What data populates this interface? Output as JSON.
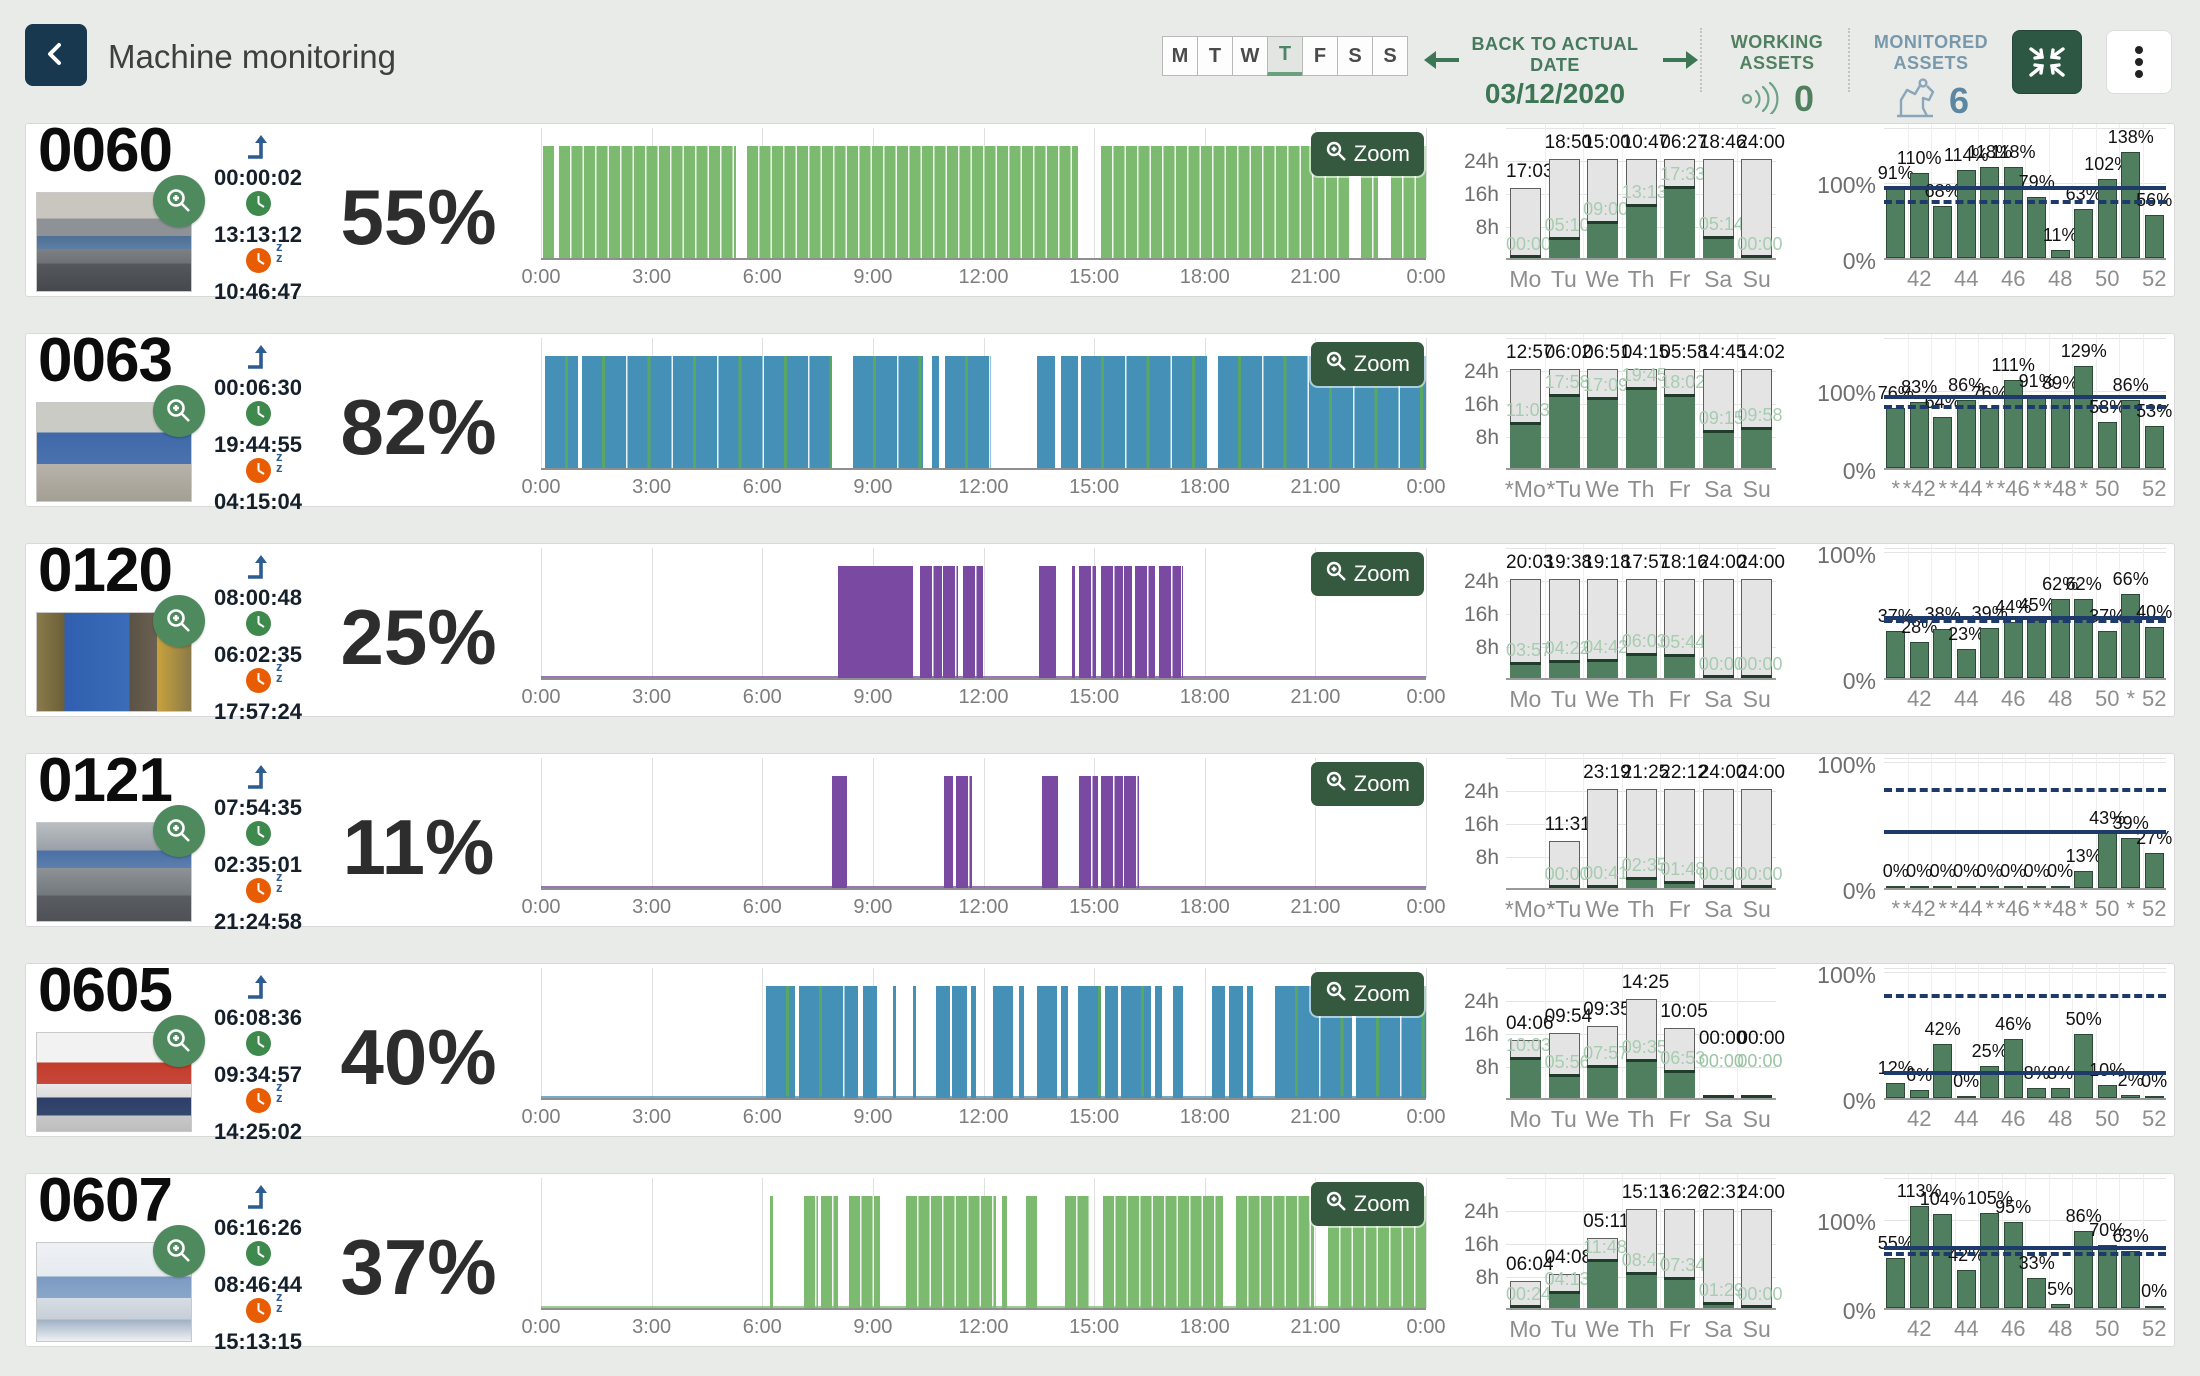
{
  "header": {
    "title": "Machine monitoring",
    "back_icon": "chevron-left-icon",
    "days": {
      "labels": [
        "M",
        "T",
        "W",
        "T",
        "F",
        "S",
        "S"
      ],
      "active_index": 3
    },
    "date_nav": {
      "label": "BACK TO ACTUAL DATE",
      "date": "03/12/2020",
      "prev_icon": "arrow-left-icon",
      "next_icon": "arrow-right-icon"
    },
    "working_assets": {
      "label": "WORKING ASSETS",
      "count": "0",
      "icon": "signal-waves-icon"
    },
    "monitored_assets": {
      "label": "MONITORED ASSETS",
      "count": "6",
      "icon": "robot-arm-icon"
    },
    "collapse_icon": "collapse-arrows-icon",
    "menu_icon": "kebab-menu-icon"
  },
  "colors": {
    "navy_button": "#17384e",
    "green_accent": "#3d7655",
    "dark_green_button": "#2d5743",
    "timeline_green": "#7cba6f",
    "timeline_blue": "#4590b6",
    "timeline_purple": "#7a4aa2",
    "bar_green": "#507f60",
    "bar_gray": "#e4e4e4",
    "target_line_navy": "#1d3a6b",
    "working_green": "#50805f",
    "monitored_blue": "#7898ab"
  },
  "zoom_button_label": "Zoom",
  "timeline_axis": [
    "0:00",
    "3:00",
    "6:00",
    "9:00",
    "12:00",
    "15:00",
    "18:00",
    "21:00",
    "0:00"
  ],
  "weekly_axis": {
    "y": [
      "24h",
      "16h",
      "8h"
    ]
  },
  "pct_axis": {
    "y100": "100%",
    "y0": "0%"
  },
  "machines": [
    {
      "id": "0060",
      "percent": "55%",
      "photo": "a",
      "times": {
        "changeover": "00:00:02",
        "running": "13:13:12",
        "idle": "10:46:47"
      },
      "timeline": {
        "color": "green",
        "baseline_colored": false,
        "segments": [
          [
            0.05,
            0.35,
            1
          ],
          [
            0.5,
            5.3,
            1
          ],
          [
            5.6,
            14.55,
            1
          ],
          [
            15.2,
            21.9,
            1
          ],
          [
            22.25,
            22.7,
            1
          ],
          [
            23.05,
            24,
            1
          ]
        ]
      },
      "week": {
        "days": [
          "Mo",
          "Tu",
          "We",
          "Th",
          "Fr",
          "Sa",
          "Su"
        ],
        "top": [
          "17:03",
          "18:50",
          "15:00",
          "10:47",
          "06:27",
          "18:46",
          "24:00"
        ],
        "green": [
          "00:00",
          "05:10",
          "09:00",
          "13:13",
          "17:33",
          "05:14",
          "00:00"
        ],
        "green_h": [
          0.1,
          5.17,
          9.0,
          13.22,
          17.55,
          5.23,
          0.1
        ],
        "total_h": [
          17.05,
          24,
          24,
          24,
          24,
          24,
          24
        ]
      },
      "weeks": {
        "ticks": [
          "",
          "42",
          "",
          "44",
          "",
          "46",
          "",
          "48",
          "",
          "50",
          "",
          "52"
        ],
        "values": [
          91,
          110,
          68,
          114,
          118,
          118,
          79,
          11,
          63,
          102,
          138,
          56
        ],
        "labels": [
          "91%",
          "110%",
          "68%",
          "114%",
          "118%",
          "118%",
          "79%",
          "11%",
          "63%",
          "102%",
          "138%",
          "56%"
        ],
        "solid": 88,
        "dashed": 70,
        "ymax": 166
      }
    },
    {
      "id": "0063",
      "percent": "82%",
      "photo": "b",
      "times": {
        "changeover": "00:06:30",
        "running": "19:44:55",
        "idle": "04:15:04"
      },
      "timeline": {
        "color": "blue",
        "baseline_colored": false,
        "segments": [
          [
            0.1,
            1.0,
            1
          ],
          [
            1.12,
            7.9,
            1
          ],
          [
            8.45,
            10.35,
            1
          ],
          [
            10.6,
            10.8,
            1
          ],
          [
            10.95,
            12.2,
            1
          ],
          [
            13.45,
            13.95,
            1
          ],
          [
            14.1,
            14.55,
            1
          ],
          [
            14.65,
            18.05,
            1
          ],
          [
            18.35,
            24,
            1
          ]
        ]
      },
      "week": {
        "days": [
          "*Mo",
          "*Tu",
          "We",
          "Th",
          "Fr",
          "Sa",
          "Su"
        ],
        "top": [
          "12:57",
          "06:02",
          "06:51",
          "04:15",
          "05:58",
          "14:45",
          "14:02"
        ],
        "green": [
          "11:03",
          "17:58",
          "17:09",
          "19:45",
          "18:02",
          "09:15",
          "09:58"
        ],
        "green_h": [
          11.05,
          17.97,
          17.15,
          19.75,
          18.03,
          9.25,
          9.97
        ],
        "total_h": [
          24,
          24,
          24,
          24,
          24,
          24,
          24
        ]
      },
      "weeks": {
        "ticks": [
          "*",
          "*42",
          "*",
          "*44",
          "*",
          "*46",
          "*",
          "*48",
          "*",
          "50",
          "",
          "52"
        ],
        "values": [
          76,
          83,
          64,
          86,
          76,
          111,
          91,
          89,
          129,
          58,
          86,
          53
        ],
        "labels": [
          "76%",
          "83%",
          "64%",
          "86%",
          "76%",
          "111%",
          "91%",
          "89%",
          "129%",
          "58%",
          "86%",
          "53%"
        ],
        "solid": 87,
        "dashed": 75,
        "ymax": 162
      }
    },
    {
      "id": "0120",
      "percent": "25%",
      "photo": "c",
      "times": {
        "changeover": "08:00:48",
        "running": "06:02:35",
        "idle": "17:57:24"
      },
      "timeline": {
        "color": "purple",
        "baseline_colored": true,
        "segments": [
          [
            8.05,
            10.1,
            0
          ],
          [
            10.28,
            11.32,
            1
          ],
          [
            11.45,
            11.98,
            1
          ],
          [
            13.5,
            13.97,
            0
          ],
          [
            14.4,
            14.47,
            0
          ],
          [
            14.6,
            15.05,
            1
          ],
          [
            15.18,
            16.02,
            1
          ],
          [
            16.1,
            16.65,
            1
          ],
          [
            16.75,
            17.42,
            1
          ]
        ]
      },
      "week": {
        "days": [
          "Mo",
          "Tu",
          "We",
          "Th",
          "Fr",
          "Sa",
          "Su"
        ],
        "top": [
          "20:03",
          "19:38",
          "19:18",
          "17:57",
          "18:16",
          "24:00",
          "24:00"
        ],
        "green": [
          "03:57",
          "04:22",
          "04:42",
          "06:03",
          "05:44",
          "00:00",
          "00:00"
        ],
        "green_h": [
          3.95,
          4.37,
          4.7,
          6.05,
          5.73,
          0.1,
          0.1
        ],
        "total_h": [
          24,
          24,
          24,
          24,
          24,
          24,
          24
        ]
      },
      "weeks": {
        "ticks": [
          "",
          "42",
          "",
          "44",
          "",
          "46",
          "",
          "48",
          "",
          "50",
          "*",
          "52"
        ],
        "values": [
          37,
          28,
          38,
          23,
          39,
          44,
          45,
          62,
          62,
          37,
          66,
          40
        ],
        "labels": [
          "37%",
          "28%",
          "38%",
          "23%",
          "39%",
          "44%",
          "45%",
          "62%",
          "62%",
          "37%",
          "66%",
          "40%"
        ],
        "solid": 45,
        "dashed": 43,
        "ymax": 100
      }
    },
    {
      "id": "0121",
      "percent": "11%",
      "photo": "d",
      "times": {
        "changeover": "07:54:35",
        "running": "02:35:01",
        "idle": "21:24:58"
      },
      "timeline": {
        "color": "purple",
        "baseline_colored": true,
        "segments": [
          [
            7.88,
            8.3,
            0
          ],
          [
            10.92,
            11.18,
            0
          ],
          [
            11.25,
            11.68,
            1
          ],
          [
            13.58,
            14.02,
            0
          ],
          [
            14.6,
            15.1,
            1
          ],
          [
            15.18,
            16.22,
            1
          ]
        ]
      },
      "week": {
        "days": [
          "*Mo",
          "*Tu",
          "We",
          "Th",
          "Fr",
          "Sa",
          "Su"
        ],
        "top": [
          "",
          "11:31",
          "23:19",
          "21:25",
          "22:12",
          "24:00",
          "24:00"
        ],
        "green": [
          "",
          "00:00",
          "00:41",
          "02:35",
          "01:48",
          "00:00",
          "00:00"
        ],
        "green_h": [
          0,
          0.1,
          0.68,
          2.58,
          1.8,
          0.1,
          0.1
        ],
        "total_h": [
          0,
          11.52,
          24,
          24,
          24,
          24,
          24
        ]
      },
      "weeks": {
        "ticks": [
          "*",
          "*42",
          "*",
          "*44",
          "*",
          "*46",
          "*",
          "*48",
          "*",
          "50",
          "*",
          "52"
        ],
        "values": [
          0,
          0,
          0,
          0,
          0,
          0,
          0,
          0,
          13,
          43,
          39,
          27
        ],
        "labels": [
          "0%",
          "0%",
          "0%",
          "0%",
          "0%",
          "0%",
          "0%",
          "0%",
          "13%",
          "43%",
          "39%",
          "27%"
        ],
        "solid": 42,
        "dashed": 75,
        "ymax": 100
      }
    },
    {
      "id": "0605",
      "percent": "40%",
      "photo": "e",
      "times": {
        "changeover": "06:08:36",
        "running": "09:34:57",
        "idle": "14:25:02"
      },
      "timeline": {
        "color": "blue",
        "baseline_colored": true,
        "segments": [
          [
            6.1,
            6.9,
            1
          ],
          [
            7.0,
            8.6,
            1
          ],
          [
            8.72,
            9.12,
            1
          ],
          [
            9.55,
            9.62,
            0
          ],
          [
            10.1,
            10.18,
            0
          ],
          [
            10.72,
            11.08,
            1
          ],
          [
            11.15,
            11.55,
            1
          ],
          [
            11.65,
            11.8,
            0
          ],
          [
            12.25,
            12.8,
            1
          ],
          [
            12.95,
            13.1,
            0
          ],
          [
            13.45,
            14.0,
            1
          ],
          [
            14.1,
            14.3,
            0
          ],
          [
            14.55,
            15.2,
            1
          ],
          [
            15.3,
            15.65,
            1
          ],
          [
            15.72,
            16.55,
            1
          ],
          [
            16.65,
            16.85,
            0
          ],
          [
            17.15,
            17.4,
            0
          ],
          [
            18.2,
            18.55,
            1
          ],
          [
            18.65,
            19.05,
            1
          ],
          [
            19.15,
            19.3,
            0
          ],
          [
            19.9,
            22.0,
            1
          ],
          [
            22.1,
            24,
            1
          ]
        ]
      },
      "week": {
        "days": [
          "Mo",
          "Tu",
          "We",
          "Th",
          "Fr",
          "Sa",
          "Su"
        ],
        "top": [
          "04:06",
          "09:54",
          "09:35",
          "14:25",
          "10:05",
          "00:00",
          "00:00"
        ],
        "green": [
          "10:03",
          "05:56",
          "07:57",
          "09:35",
          "06:53",
          "00:00",
          "00:00"
        ],
        "green_h": [
          10.05,
          5.93,
          7.95,
          9.58,
          6.88,
          0,
          0
        ],
        "total_h": [
          14.15,
          15.83,
          17.53,
          24,
          16.97,
          0,
          0
        ]
      },
      "weeks": {
        "ticks": [
          "",
          "42",
          "",
          "44",
          "",
          "46",
          "",
          "48",
          "",
          "50",
          "",
          "52"
        ],
        "values": [
          12,
          6,
          42,
          0,
          25,
          46,
          8,
          8,
          50,
          10,
          2,
          0
        ],
        "labels": [
          "12%",
          "6%",
          "42%",
          "0%",
          "25%",
          "46%",
          "8%",
          "8%",
          "50%",
          "10%",
          "2%",
          "0%"
        ],
        "solid": 18,
        "dashed": 78,
        "ymax": 100
      }
    },
    {
      "id": "0607",
      "percent": "37%",
      "photo": "f",
      "times": {
        "changeover": "06:16:26",
        "running": "08:46:44",
        "idle": "15:13:15"
      },
      "timeline": {
        "color": "green",
        "baseline_colored": true,
        "segments": [
          [
            6.2,
            6.28,
            0
          ],
          [
            7.12,
            7.52,
            1
          ],
          [
            7.6,
            8.05,
            1
          ],
          [
            8.35,
            9.2,
            1
          ],
          [
            9.9,
            12.35,
            1
          ],
          [
            12.5,
            12.65,
            0
          ],
          [
            13.15,
            13.45,
            1
          ],
          [
            14.2,
            14.9,
            1
          ],
          [
            15.25,
            18.5,
            1
          ],
          [
            18.85,
            20.95,
            1
          ],
          [
            21.35,
            24,
            1
          ]
        ]
      },
      "week": {
        "days": [
          "Mo",
          "Tu",
          "We",
          "Th",
          "Fr",
          "Sa",
          "Su"
        ],
        "top": [
          "06:04",
          "04:08",
          "05:11",
          "15:13",
          "16:26",
          "22:31",
          "24:00"
        ],
        "green": [
          "00:24",
          "04:13",
          "11:48",
          "08:47",
          "07:34",
          "01:29",
          "00:00"
        ],
        "green_h": [
          0.4,
          4.22,
          11.8,
          8.78,
          7.57,
          1.48,
          0.1
        ],
        "total_h": [
          6.47,
          8.35,
          16.98,
          24,
          24,
          24,
          24
        ]
      },
      "weeks": {
        "ticks": [
          "",
          "42",
          "",
          "44",
          "",
          "46",
          "",
          "48",
          "",
          "50",
          "",
          "52"
        ],
        "values": [
          55,
          113,
          104,
          42,
          105,
          95,
          33,
          5,
          86,
          70,
          63,
          0
        ],
        "labels": [
          "55%",
          "113%",
          "104%",
          "42%",
          "105%",
          "95%",
          "33%",
          "5%",
          "86%",
          "70%",
          "63%",
          "0%"
        ],
        "solid": 64,
        "dashed": 58,
        "ymax": 142
      }
    }
  ]
}
